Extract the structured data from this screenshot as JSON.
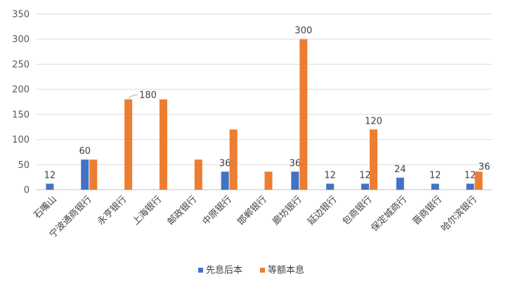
{
  "chart_data": {
    "type": "bar",
    "title": "",
    "xlabel": "",
    "ylabel": "",
    "ylim": [
      0,
      350
    ],
    "yticks": [
      0,
      50,
      100,
      150,
      200,
      250,
      300,
      350
    ],
    "grid": true,
    "legend_position": "bottom",
    "categories": [
      "石嘴山",
      "宁波通商银行",
      "永亨银行",
      "上海银行",
      "邮政银行",
      "中原银行",
      "邯郸银行",
      "廊坊银行",
      "延边银行",
      "包商银行",
      "保定城商行",
      "晋商银行",
      "哈尔滨银行"
    ],
    "series": [
      {
        "name": "先息后本",
        "color": "#4472C4",
        "values": [
          12,
          60,
          null,
          null,
          null,
          36,
          null,
          36,
          12,
          12,
          24,
          12,
          12
        ],
        "labels": [
          "12",
          "60",
          "",
          "",
          "",
          "36",
          "",
          "36",
          "12",
          "12",
          "24",
          "12",
          "12"
        ]
      },
      {
        "name": "等额本息",
        "color": "#ED7D31",
        "values": [
          null,
          60,
          180,
          180,
          60,
          120,
          36,
          300,
          null,
          120,
          null,
          null,
          36
        ],
        "labels": [
          "",
          "",
          "180",
          "",
          "",
          "",
          "",
          "300",
          "",
          "120",
          "",
          "",
          "36"
        ]
      }
    ]
  }
}
